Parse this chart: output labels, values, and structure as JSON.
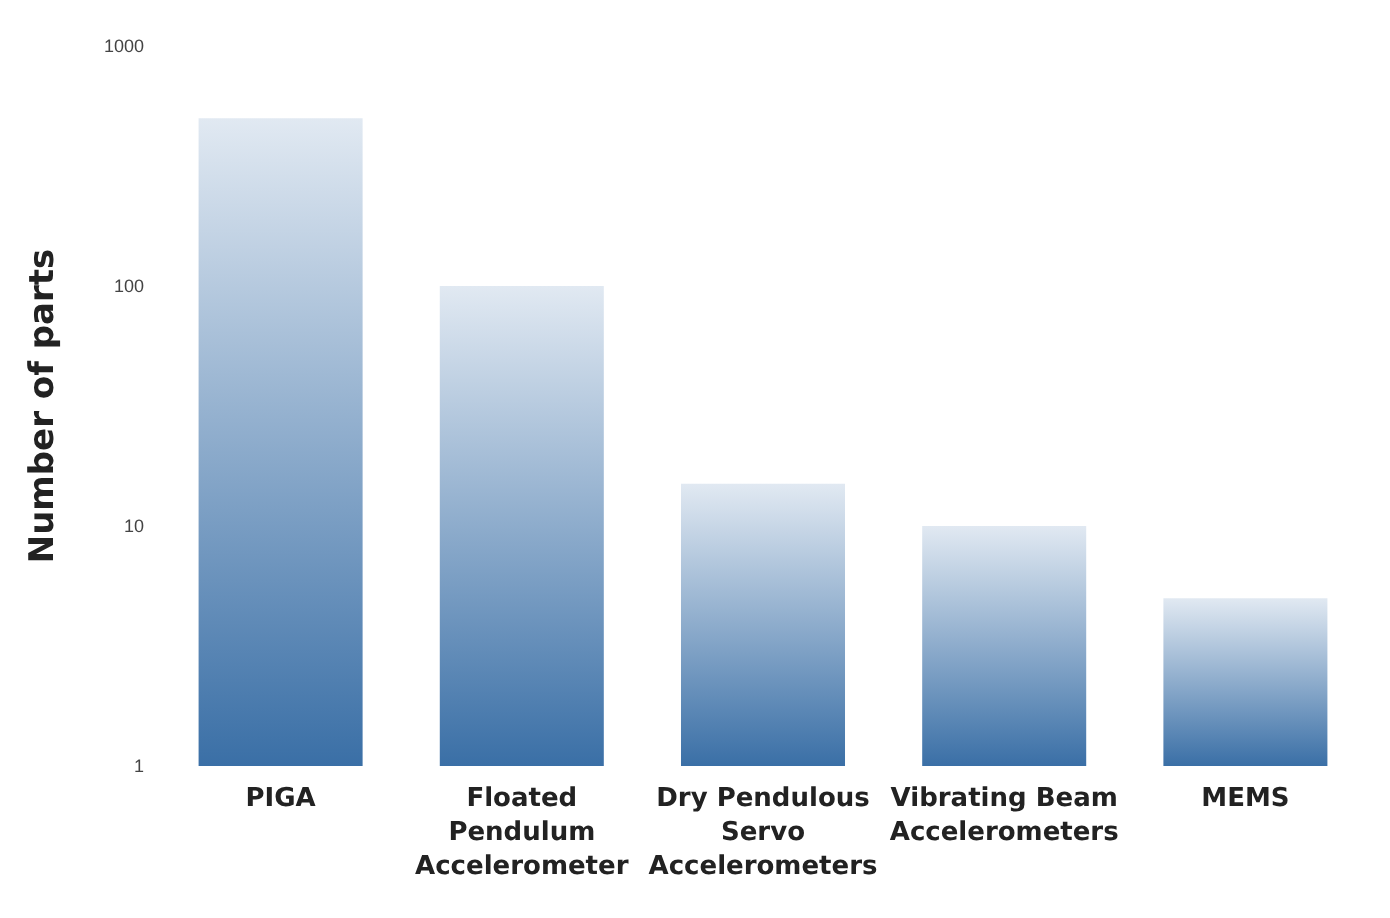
{
  "chart_data": {
    "type": "bar",
    "ylabel": "Number of parts",
    "categories": [
      "PIGA",
      "Floated Pendulum Accelerometer",
      "Dry Pendulous Servo Accelerometers",
      "Vibrating Beam Accelerometers",
      "MEMS"
    ],
    "values": [
      500,
      100,
      15,
      10,
      5
    ],
    "color": "#3a6fa6",
    "log": "y",
    "ylim": [
      1,
      1000
    ],
    "yticks": [
      1,
      10,
      100,
      1000
    ],
    "grid": false
  }
}
